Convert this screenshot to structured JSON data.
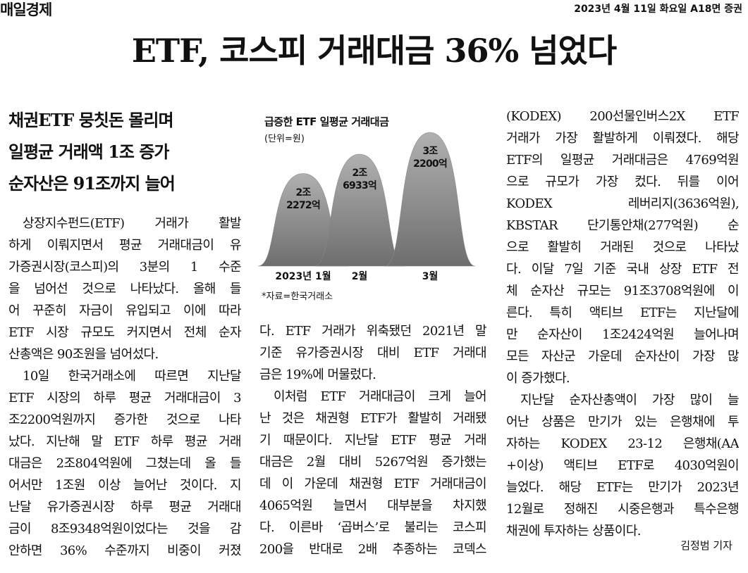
{
  "header": {
    "masthead": "매일경제",
    "dateline": "2023년 4월 11일 화요일 A18면 증권"
  },
  "headline": "ETF, 코스피 거래대금 36% 넘었다",
  "subheads": [
    "채권ETF 뭉칫돈 몰리며",
    "일평균 거래액 1조 증가",
    "순자산은 91조까지 늘어"
  ],
  "chart": {
    "type": "area",
    "title": "급증한 ETF 일평균 거래대금",
    "unit": "(단위=원)",
    "categories": [
      "2023년 1월",
      "2월",
      "3월"
    ],
    "values": [
      2227200000000,
      2693300000000,
      3220000000000
    ],
    "value_labels": [
      "2조 2272억",
      "2조 6933억",
      "3조 2200억"
    ],
    "color": "#8a8a8a",
    "source": "*자료=한국거래소"
  },
  "body": {
    "columns": [
      {
        "paragraphs": [
          [
            "상장지수펀드(ETF) 거래가 활발",
            "하게 이뤄지면서 평균 거래대금이 유",
            "가증권시장(코스피)의 3분의 1 수준",
            "을 넘어선 것으로 나타났다. 올해 들",
            "어 꾸준히 자금이 유입되고 이에 따라",
            "ETF 시장 규모도 커지면서 전체 순자",
            "산총액은 90조원을 넘어섰다."
          ],
          [
            "10일 한국거래소에 따르면 지난달",
            "ETF 시장의 하루 평균 거래대금이 3",
            "조2200억원까지 증가한 것으로 나타",
            "났다. 지난해 말 ETF 하루 평균 거래",
            "대금은 2조804억원에 그쳤는데 올 들",
            "어서만 1조원 이상 늘어난 것이다. 지",
            "난달 유가증권시장 하루 평균 거래대",
            "금이 8조9348억원이었다는 것을 감",
            "안하면 36% 수준까지 비중이 커졌"
          ]
        ]
      },
      {
        "paragraphs": [
          [
            "다. ETF 거래가 위축됐던 2021년 말",
            "기준 유가증권시장 대비 ETF 거래대",
            "금은 19%에 머물렀다."
          ],
          [
            "이처럼 ETF 거래대금이 크게 늘어",
            "난 것은 채권형 ETF가 활발히 거래됐",
            "기 때문이다. 지난달 ETF 평균 거래",
            "대금은 2월 대비 5267억원 증가했는",
            "데 이 가운데 채권형 ETF 거래대금이",
            "4065억원 늘면서 대부분을 차지했",
            "다. 이른바 ‘곱버스’로 불리는 코스피",
            "200을 반대로 2배 추종하는 코덱스"
          ]
        ]
      },
      {
        "paragraphs": [
          [
            "(KODEX) 200선물인버스2X ETF",
            "거래가 가장 활발하게 이뤄졌다. 해당",
            "ETF의 일평균 거래대금은 4769억원",
            "으로 규모가 가장 컸다. 뒤를 이어",
            "KODEX 레버리지(3636억원),",
            "KBSTAR 단기통안채(277억원) 순",
            "으로 활발히 거래된 것으로 나타났",
            "다. 이달 7일 기준 국내 상장 ETF 전",
            "체 순자산 규모는 91조3708억원에 이",
            "른다. 특히 액티브 ETF는 지난달에",
            "만 순자산이 1조2424억원 늘어나며",
            "모든 자산군 가운데 순자산이 가장 많",
            "이 증가했다."
          ],
          [
            "지난달 순자산총액이 가장 많이 늘",
            "어난 상품은 만기가 있는 은행채에 투",
            "자하는 KODEX 23-12 은행채(AA",
            "+이상) 액티브 ETF로 4030억원이",
            "늘었다. 해당 ETF는 만기가 2023년",
            "12월로 정해진 시중은행과 특수은행",
            "채권에 투자하는 상품이다."
          ]
        ]
      }
    ],
    "byline": "김정범 기자"
  }
}
